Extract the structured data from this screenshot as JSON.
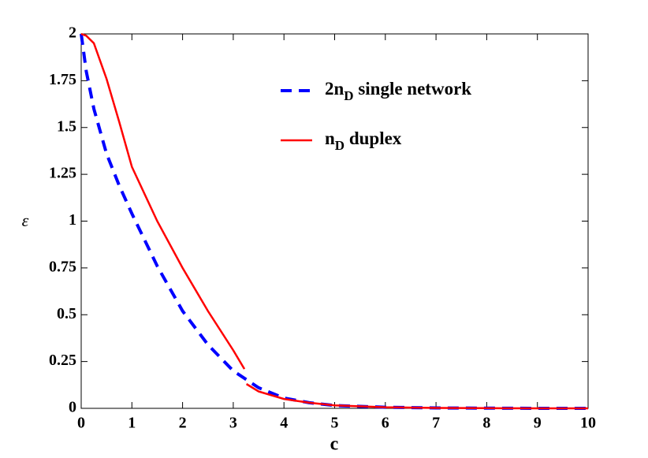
{
  "chart_data": {
    "type": "line",
    "x_label": "c",
    "y_label": "ε",
    "xlim": [
      0,
      10
    ],
    "ylim": [
      0,
      2
    ],
    "xticks": [
      0,
      1,
      2,
      3,
      4,
      5,
      6,
      7,
      8,
      9,
      10
    ],
    "yticks": [
      0,
      0.25,
      0.5,
      0.75,
      1,
      1.25,
      1.5,
      1.75,
      2
    ],
    "series": [
      {
        "name": [
          "2n",
          "D",
          " single network"
        ],
        "color": "#0000ff",
        "dash": true,
        "x": [
          0,
          0.1,
          0.25,
          0.5,
          0.75,
          1,
          1.5,
          2,
          2.5,
          3,
          3.5,
          4,
          4.5,
          5,
          6,
          7,
          8,
          9,
          10
        ],
        "values": [
          2,
          1.8,
          1.6,
          1.36,
          1.19,
          1.04,
          0.76,
          0.52,
          0.34,
          0.2,
          0.11,
          0.055,
          0.03,
          0.015,
          0.006,
          0.002,
          0.001,
          0,
          0
        ]
      },
      {
        "name": [
          "n",
          "D",
          " duplex"
        ],
        "color": "#ff0000",
        "dash": false,
        "x": [
          0,
          0.1,
          0.25,
          0.5,
          0.75,
          1,
          1.5,
          2,
          2.5,
          3,
          3.22,
          3.24,
          3.26,
          3.5,
          4,
          4.5,
          5,
          6,
          7,
          8,
          9,
          10
        ],
        "values": [
          2,
          1.99,
          1.95,
          1.76,
          1.53,
          1.29,
          1.0,
          0.75,
          0.52,
          0.31,
          0.21,
          null,
          0.13,
          0.09,
          0.05,
          0.03,
          0.016,
          0.006,
          0.002,
          0.001,
          0,
          0
        ]
      }
    ]
  }
}
